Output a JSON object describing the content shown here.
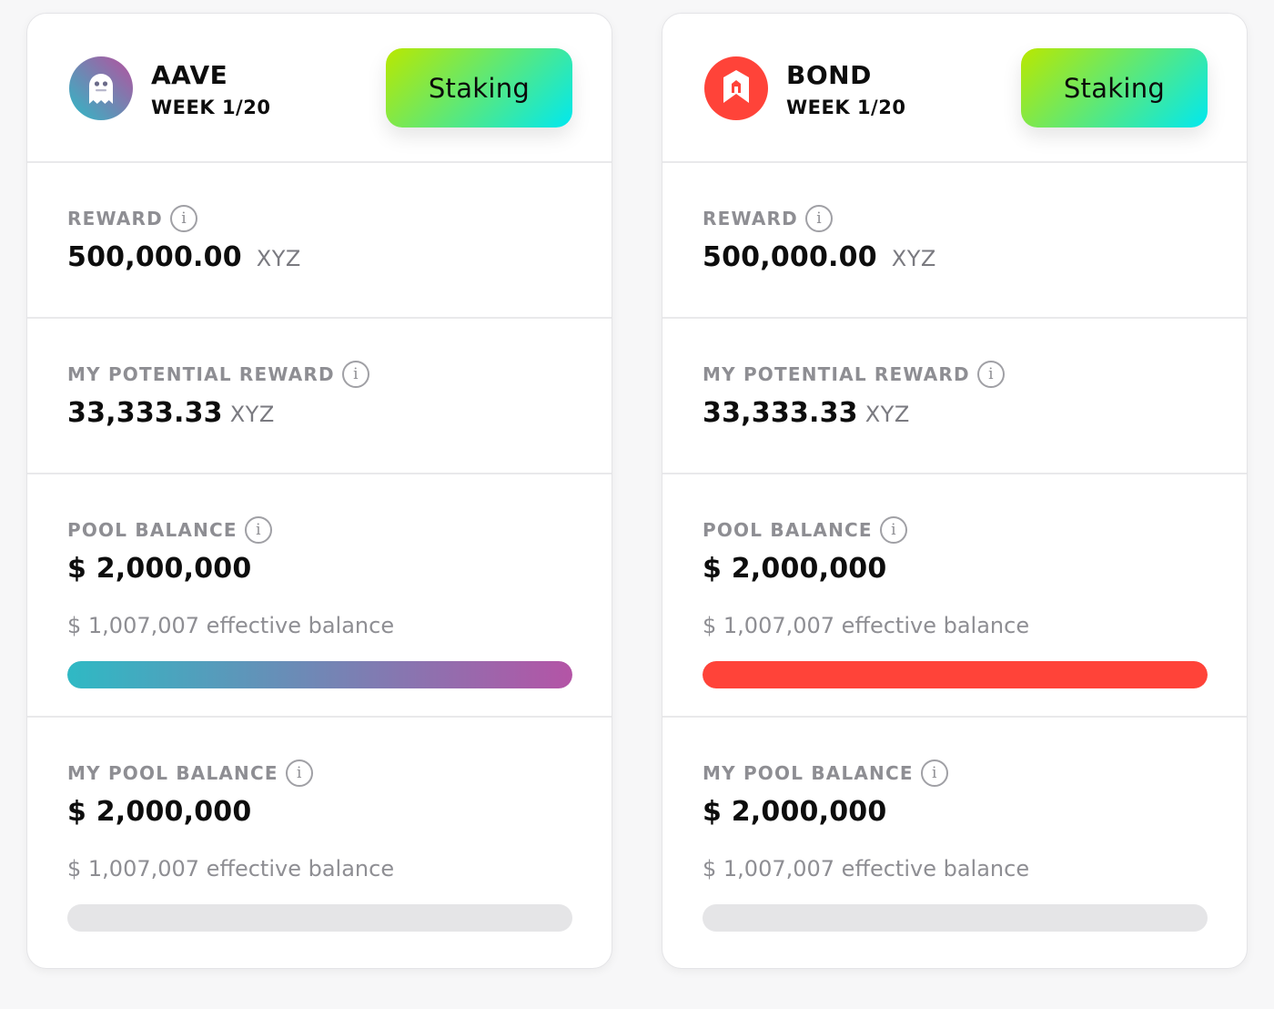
{
  "cards": [
    {
      "token": "AAVE",
      "week": "WEEK 1/20",
      "logo_icon": "aave-ghost-icon",
      "action_label": "Staking",
      "reward": {
        "label": "REWARD",
        "value": "500,000.00",
        "unit": "XYZ"
      },
      "potential_reward": {
        "label": "MY POTENTIAL REWARD",
        "value": "33,333.33",
        "unit": "XYZ"
      },
      "pool_balance": {
        "label": "POOL BALANCE",
        "value": "$ 2,000,000",
        "effective": "$ 1,007,007 effective balance",
        "progress": 1.0
      },
      "my_pool_balance": {
        "label": "MY POOL BALANCE",
        "value": "$ 2,000,000",
        "effective": "$ 1,007,007 effective balance",
        "progress": 0.0
      },
      "bar_colors": [
        "#2fb9c4",
        "#b454a6"
      ]
    },
    {
      "token": "BOND",
      "week": "WEEK 1/20",
      "logo_icon": "barnbridge-house-icon",
      "action_label": "Staking",
      "reward": {
        "label": "REWARD",
        "value": "500,000.00",
        "unit": "XYZ"
      },
      "potential_reward": {
        "label": "MY POTENTIAL REWARD",
        "value": "33,333.33",
        "unit": "XYZ"
      },
      "pool_balance": {
        "label": "POOL BALANCE",
        "value": "$ 2,000,000",
        "effective": "$ 1,007,007 effective balance",
        "progress": 1.0
      },
      "my_pool_balance": {
        "label": "MY POOL BALANCE",
        "value": "$ 2,000,000",
        "effective": "$ 1,007,007 effective balance",
        "progress": 0.0
      },
      "bar_colors": [
        "#ff4339",
        "#ff4339"
      ]
    }
  ],
  "info_glyph": "i",
  "colors": {
    "button_gradient_start": "#b9e800",
    "button_gradient_end": "#00e8f0",
    "track": "#e5e5e7",
    "bond_red": "#ff4339"
  }
}
